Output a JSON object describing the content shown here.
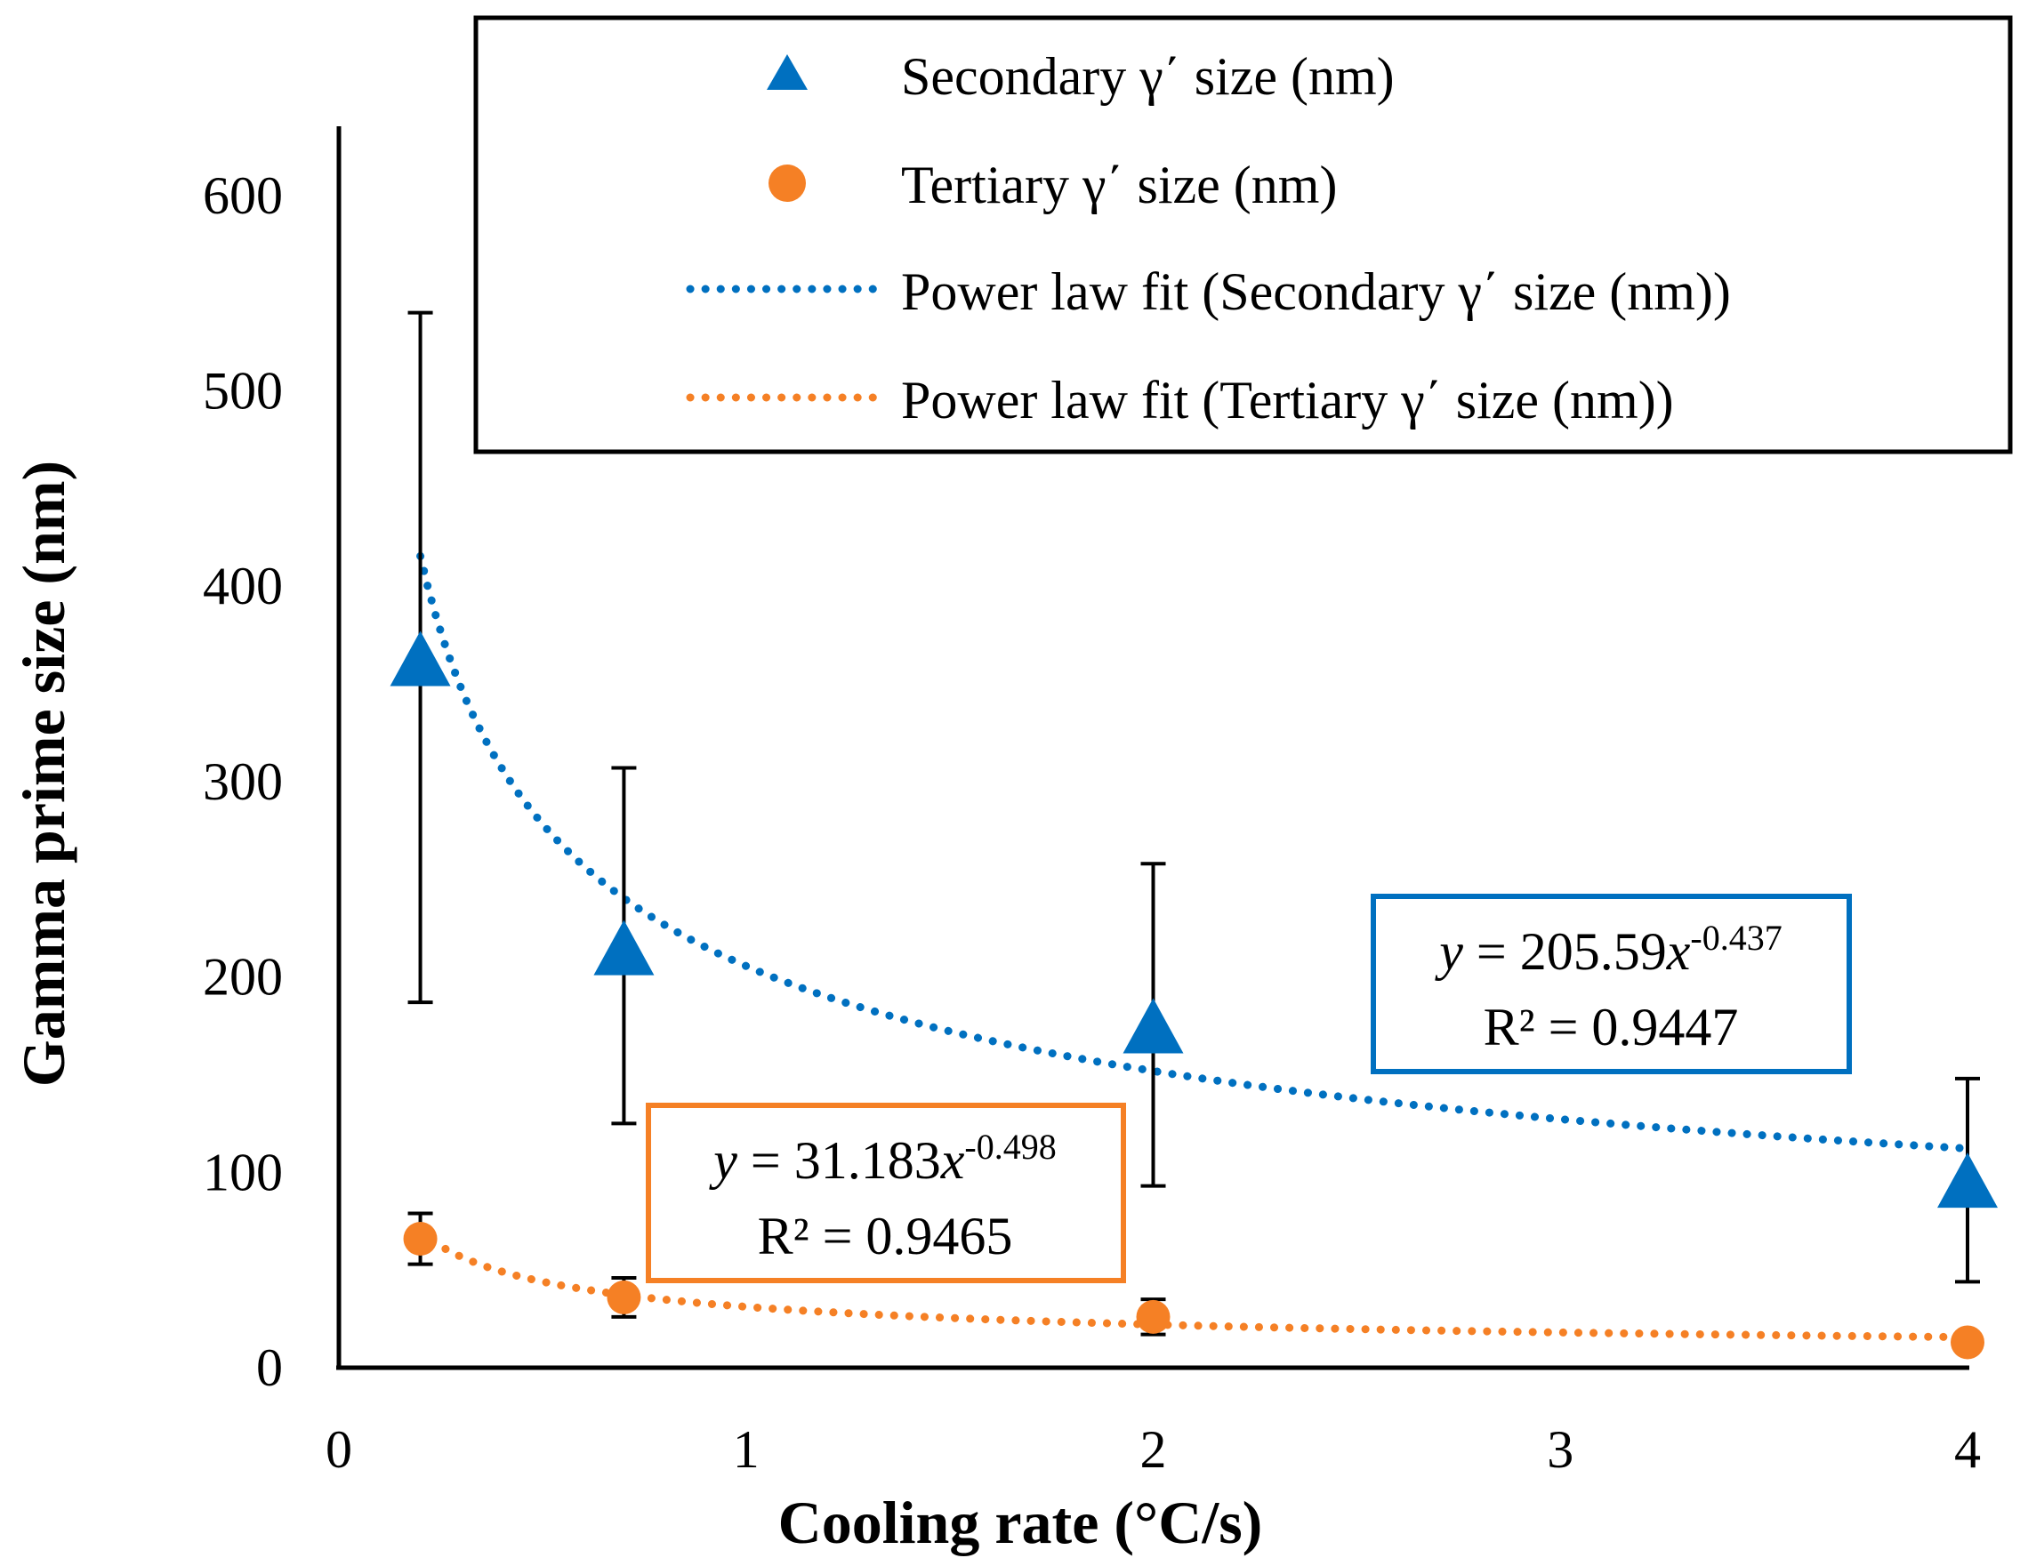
{
  "chart_data": {
    "type": "scatter",
    "xlabel": "Cooling rate (°C/s)",
    "ylabel": "Gamma prime size (nm)",
    "xlim": [
      0,
      4
    ],
    "ylim": [
      0,
      650
    ],
    "xticks": [
      0,
      1,
      2,
      3,
      4
    ],
    "yticks": [
      0,
      100,
      200,
      300,
      400,
      500,
      600
    ],
    "x_tick_labels": [
      "0",
      "1",
      "2",
      "3",
      "4"
    ],
    "y_tick_labels": [
      "0",
      "100",
      "200",
      "300",
      "400",
      "500",
      "600"
    ],
    "grid": false,
    "legend_position": "top-right",
    "series": [
      {
        "name": "Secondary γ΄ size (nm)",
        "marker": "triangle",
        "color": "#0070C0",
        "points": [
          {
            "x": 0.2,
            "y": 363,
            "err_low": 187,
            "err_high": 540
          },
          {
            "x": 0.7,
            "y": 215,
            "err_low": 125,
            "err_high": 307
          },
          {
            "x": 2.0,
            "y": 175,
            "err_low": 93,
            "err_high": 258
          },
          {
            "x": 4.0,
            "y": 96,
            "err_low": 44,
            "err_high": 148
          }
        ]
      },
      {
        "name": "Tertiary γ΄ size (nm)",
        "marker": "circle",
        "color": "#F58025",
        "points": [
          {
            "x": 0.2,
            "y": 66,
            "err_low": 53,
            "err_high": 79
          },
          {
            "x": 0.7,
            "y": 36,
            "err_low": 26,
            "err_high": 46
          },
          {
            "x": 2.0,
            "y": 26,
            "err_low": 17,
            "err_high": 35
          },
          {
            "x": 4.0,
            "y": 13,
            "err_low": 13,
            "err_high": 13
          }
        ]
      }
    ],
    "fits": [
      {
        "name": "Power law fit (Secondary γ΄ size (nm))",
        "color": "#0070C0",
        "a": 205.59,
        "b": -0.437,
        "x_range": [
          0.2,
          4.0
        ],
        "eq_y": "y",
        "eq_body": " = 205.59",
        "eq_x": "x",
        "eq_exp": "-0.437",
        "r2": "R² = 0.9447"
      },
      {
        "name": "Power law fit (Tertiary γ΄ size (nm))",
        "color": "#F58025",
        "a": 31.183,
        "b": -0.498,
        "x_range": [
          0.2,
          4.0
        ],
        "eq_y": "y",
        "eq_body": " = 31.183",
        "eq_x": "x",
        "eq_exp": "-0.498",
        "r2": "R² = 0.9465"
      }
    ]
  }
}
